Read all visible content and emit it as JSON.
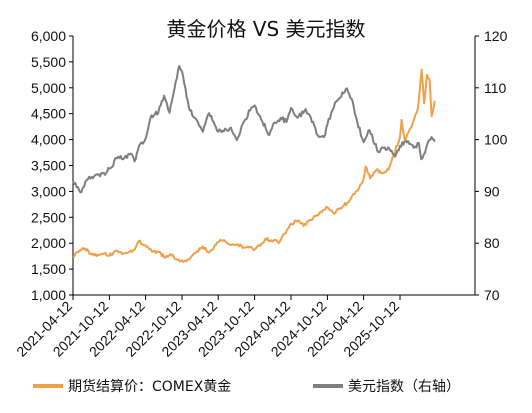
{
  "chart_data": {
    "type": "line",
    "title": "黄金价格 VS 美元指数",
    "x_tick_labels": [
      "2021-04-12",
      "2021-10-12",
      "2022-04-12",
      "2022-10-12",
      "2023-04-12",
      "2023-10-12",
      "2024-04-12",
      "2024-10-12",
      "2025-04-12",
      "2025-10-12"
    ],
    "y_left": {
      "min": 1000,
      "max": 6000,
      "step": 500,
      "tick_labels": [
        "1,000",
        "1,500",
        "2,000",
        "2,500",
        "3,000",
        "3,500",
        "4,000",
        "4,500",
        "5,000",
        "5,500",
        "6,000"
      ]
    },
    "y_right": {
      "min": 70,
      "max": 120,
      "step": 10,
      "tick_labels": [
        "70",
        "80",
        "90",
        "100",
        "110",
        "120"
      ]
    },
    "legend_placement": "bottom",
    "grid": false,
    "series": [
      {
        "name": "期货结算价：COMEX黄金",
        "axis": "left",
        "color": "#F0A04B",
        "points": [
          [
            "2021-04-12",
            1740
          ],
          [
            "2021-05-15",
            1860
          ],
          [
            "2021-06-12",
            1900
          ],
          [
            "2021-07-10",
            1800
          ],
          [
            "2021-08-15",
            1780
          ],
          [
            "2021-09-15",
            1800
          ],
          [
            "2021-10-12",
            1760
          ],
          [
            "2021-11-15",
            1860
          ],
          [
            "2021-12-15",
            1790
          ],
          [
            "2022-01-15",
            1820
          ],
          [
            "2022-02-15",
            1870
          ],
          [
            "2022-03-08",
            2040
          ],
          [
            "2022-04-12",
            1960
          ],
          [
            "2022-05-15",
            1830
          ],
          [
            "2022-06-15",
            1830
          ],
          [
            "2022-07-20",
            1720
          ],
          [
            "2022-08-15",
            1790
          ],
          [
            "2022-09-20",
            1680
          ],
          [
            "2022-10-12",
            1670
          ],
          [
            "2022-11-05",
            1650
          ],
          [
            "2022-12-15",
            1810
          ],
          [
            "2023-01-25",
            1940
          ],
          [
            "2023-02-25",
            1820
          ],
          [
            "2023-04-12",
            2020
          ],
          [
            "2023-05-05",
            2050
          ],
          [
            "2023-06-15",
            1960
          ],
          [
            "2023-07-20",
            1980
          ],
          [
            "2023-08-20",
            1920
          ],
          [
            "2023-09-20",
            1930
          ],
          [
            "2023-10-12",
            1880
          ],
          [
            "2023-11-15",
            1990
          ],
          [
            "2023-12-05",
            2090
          ],
          [
            "2024-01-15",
            2050
          ],
          [
            "2024-02-15",
            2020
          ],
          [
            "2024-03-10",
            2180
          ],
          [
            "2024-04-12",
            2380
          ],
          [
            "2024-05-20",
            2440
          ],
          [
            "2024-06-15",
            2330
          ],
          [
            "2024-07-20",
            2450
          ],
          [
            "2024-08-20",
            2540
          ],
          [
            "2024-09-20",
            2640
          ],
          [
            "2024-10-12",
            2690
          ],
          [
            "2024-11-10",
            2580
          ],
          [
            "2024-12-15",
            2680
          ],
          [
            "2025-01-20",
            2780
          ],
          [
            "2025-02-20",
            2950
          ],
          [
            "2025-03-20",
            3060
          ],
          [
            "2025-04-12",
            3240
          ],
          [
            "2025-04-22",
            3480
          ],
          [
            "2025-05-15",
            3250
          ],
          [
            "2025-06-15",
            3420
          ],
          [
            "2025-07-15",
            3350
          ],
          [
            "2025-08-15",
            3420
          ],
          [
            "2025-09-10",
            3700
          ],
          [
            "2025-10-12",
            4050
          ],
          [
            "2025-10-20",
            4380
          ],
          [
            "2025-11-05",
            4000
          ],
          [
            "2025-12-10",
            4250
          ],
          [
            "2026-01-10",
            4600
          ],
          [
            "2026-01-29",
            5350
          ],
          [
            "2026-02-10",
            4700
          ],
          [
            "2026-02-25",
            5250
          ],
          [
            "2026-03-10",
            5150
          ],
          [
            "2026-03-20",
            4450
          ],
          [
            "2026-04-05",
            4750
          ]
        ]
      },
      {
        "name": "美元指数（右轴）",
        "axis": "right",
        "color": "#7F7F7F",
        "points": [
          [
            "2021-04-12",
            92
          ],
          [
            "2021-05-25",
            89.9
          ],
          [
            "2021-06-20",
            92.2
          ],
          [
            "2021-07-15",
            92.8
          ],
          [
            "2021-08-20",
            93.3
          ],
          [
            "2021-09-20",
            93.2
          ],
          [
            "2021-10-12",
            94.4
          ],
          [
            "2021-11-25",
            96.7
          ],
          [
            "2021-12-20",
            96.2
          ],
          [
            "2022-01-28",
            97.3
          ],
          [
            "2022-02-15",
            95.8
          ],
          [
            "2022-03-10",
            98.8
          ],
          [
            "2022-04-12",
            100.2
          ],
          [
            "2022-05-12",
            104.7
          ],
          [
            "2022-06-15",
            105.2
          ],
          [
            "2022-07-14",
            108.5
          ],
          [
            "2022-08-10",
            105.2
          ],
          [
            "2022-09-05",
            110
          ],
          [
            "2022-09-28",
            114.2
          ],
          [
            "2022-10-12",
            113.2
          ],
          [
            "2022-11-15",
            106.3
          ],
          [
            "2022-12-15",
            104.2
          ],
          [
            "2023-01-25",
            101.5
          ],
          [
            "2023-02-25",
            105.1
          ],
          [
            "2023-04-12",
            101.5
          ],
          [
            "2023-05-10",
            101.6
          ],
          [
            "2023-06-15",
            102.3
          ],
          [
            "2023-07-15",
            99.9
          ],
          [
            "2023-08-20",
            103.5
          ],
          [
            "2023-09-25",
            106.1
          ],
          [
            "2023-10-12",
            106.6
          ],
          [
            "2023-11-20",
            103.5
          ],
          [
            "2023-12-25",
            100.9
          ],
          [
            "2024-01-20",
            103.3
          ],
          [
            "2024-02-20",
            104.2
          ],
          [
            "2024-03-20",
            103.4
          ],
          [
            "2024-04-12",
            106.1
          ],
          [
            "2024-05-15",
            104.2
          ],
          [
            "2024-06-25",
            105.9
          ],
          [
            "2024-07-20",
            104.3
          ],
          [
            "2024-08-25",
            100.8
          ],
          [
            "2024-09-25",
            100.5
          ],
          [
            "2024-10-12",
            102.9
          ],
          [
            "2024-11-20",
            107.2
          ],
          [
            "2025-01-13",
            109.8
          ],
          [
            "2025-02-10",
            107.9
          ],
          [
            "2025-03-10",
            103.6
          ],
          [
            "2025-04-12",
            99.5
          ],
          [
            "2025-05-12",
            101.8
          ],
          [
            "2025-06-25",
            97.6
          ],
          [
            "2025-07-15",
            98.5
          ],
          [
            "2025-08-20",
            98.2
          ],
          [
            "2025-09-17",
            96.7
          ],
          [
            "2025-10-12",
            98.8
          ],
          [
            "2025-11-10",
            99.8
          ],
          [
            "2025-12-20",
            98.4
          ],
          [
            "2026-01-15",
            99.3
          ],
          [
            "2026-01-27",
            96.2
          ],
          [
            "2026-02-15",
            97.5
          ],
          [
            "2026-03-05",
            99.8
          ],
          [
            "2026-03-20",
            100.5
          ],
          [
            "2026-04-05",
            99.6
          ]
        ]
      }
    ]
  }
}
